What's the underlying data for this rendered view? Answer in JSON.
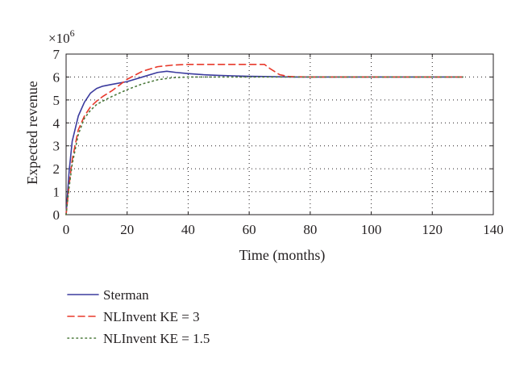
{
  "chart_data": {
    "type": "line",
    "title": "",
    "xlabel": "Time (months)",
    "ylabel": "Expected revenue",
    "y_exponent_base": "×10",
    "y_exponent_power": "6",
    "xlim": [
      0,
      140
    ],
    "ylim": [
      0,
      7
    ],
    "xticks": [
      0,
      20,
      40,
      60,
      80,
      100,
      120,
      140
    ],
    "yticks": [
      0,
      1,
      2,
      3,
      4,
      5,
      6,
      7
    ],
    "grid": true,
    "legend_position": "below",
    "series": [
      {
        "name": "Sterman",
        "color": "#3b3b9e",
        "dash": "solid",
        "x": [
          0,
          1,
          2,
          4,
          6,
          8,
          10,
          12,
          15,
          20,
          25,
          30,
          33,
          36,
          40,
          45,
          50,
          55,
          60,
          65,
          70,
          75,
          80,
          90,
          100,
          110,
          120,
          130
        ],
        "y": [
          0,
          1.9,
          3.2,
          4.3,
          4.9,
          5.3,
          5.5,
          5.6,
          5.68,
          5.8,
          6.0,
          6.2,
          6.25,
          6.2,
          6.15,
          6.1,
          6.07,
          6.05,
          6.03,
          6.02,
          6.01,
          6.0,
          6.0,
          6.0,
          6.0,
          6.0,
          6.0,
          6.0
        ]
      },
      {
        "name": "NLInvent KE = 3",
        "color": "#e8392b",
        "dash": "dashed",
        "x": [
          0,
          1,
          2,
          4,
          6,
          8,
          10,
          12,
          15,
          20,
          25,
          30,
          35,
          40,
          45,
          50,
          55,
          60,
          65,
          67,
          70,
          73,
          80,
          90,
          100,
          110,
          120,
          130
        ],
        "y": [
          0,
          1.3,
          2.4,
          3.7,
          4.3,
          4.7,
          4.95,
          5.15,
          5.4,
          5.9,
          6.25,
          6.45,
          6.52,
          6.55,
          6.55,
          6.55,
          6.55,
          6.55,
          6.55,
          6.35,
          6.1,
          6.02,
          6.0,
          6.0,
          6.0,
          6.0,
          6.0,
          6.0
        ]
      },
      {
        "name": "NLInvent KE = 1.5",
        "color": "#4c7a3c",
        "dash": "dotted",
        "x": [
          0,
          1,
          2,
          4,
          6,
          8,
          10,
          12,
          15,
          20,
          25,
          30,
          35,
          40,
          45,
          50,
          55,
          60,
          70,
          80,
          90,
          100,
          110,
          120,
          130
        ],
        "y": [
          0,
          1.2,
          2.2,
          3.5,
          4.2,
          4.55,
          4.8,
          4.95,
          5.15,
          5.45,
          5.7,
          5.88,
          5.97,
          6.0,
          6.0,
          6.0,
          6.0,
          6.0,
          6.0,
          6.0,
          6.0,
          6.0,
          6.0,
          6.0,
          6.0
        ]
      }
    ]
  }
}
